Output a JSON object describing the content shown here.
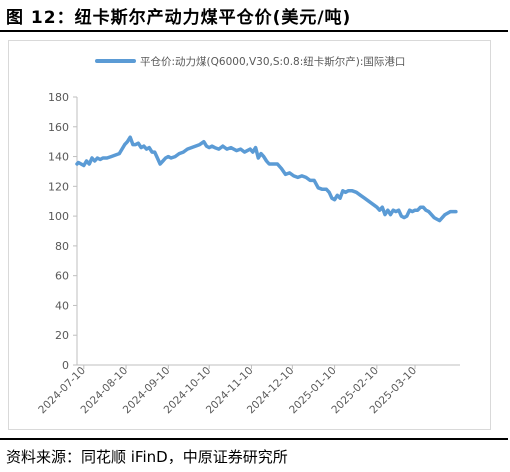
{
  "figure": {
    "title": "图 12：纽卡斯尔产动力煤平仓价(美元/吨)",
    "source": "资料来源：同花顺 iFinD，中原证券研究所"
  },
  "chart_data": {
    "type": "line",
    "title": "",
    "xlabel": "",
    "ylabel": "",
    "ylim": [
      0,
      180
    ],
    "yticks": [
      0,
      20,
      40,
      60,
      80,
      100,
      120,
      140,
      160,
      180
    ],
    "xlim": [
      "2024-07-05",
      "2025-04-12"
    ],
    "xticks": [
      "2024-07-10",
      "2024-08-10",
      "2024-09-10",
      "2024-10-10",
      "2024-11-10",
      "2024-12-10",
      "2025-01-10",
      "2025-02-10",
      "2025-03-10"
    ],
    "grid": false,
    "legend": "top",
    "series": [
      {
        "name": "平仓价:动力煤(Q6000,V30,S:0.8:纽卡斯尔产):国际港口",
        "color": "#5b9bd5",
        "x": [
          "2024-07-05",
          "2024-07-06",
          "2024-07-08",
          "2024-07-10",
          "2024-07-12",
          "2024-07-14",
          "2024-07-16",
          "2024-07-18",
          "2024-07-20",
          "2024-07-22",
          "2024-07-24",
          "2024-07-27",
          "2024-07-30",
          "2024-08-02",
          "2024-08-05",
          "2024-08-07",
          "2024-08-09",
          "2024-08-11",
          "2024-08-13",
          "2024-08-15",
          "2024-08-17",
          "2024-08-19",
          "2024-08-21",
          "2024-08-23",
          "2024-08-25",
          "2024-08-27",
          "2024-08-29",
          "2024-08-31",
          "2024-09-02",
          "2024-09-04",
          "2024-09-06",
          "2024-09-08",
          "2024-09-10",
          "2024-09-12",
          "2024-09-15",
          "2024-09-18",
          "2024-09-21",
          "2024-09-24",
          "2024-09-27",
          "2024-09-30",
          "2024-10-03",
          "2024-10-06",
          "2024-10-08",
          "2024-10-10",
          "2024-10-12",
          "2024-10-14",
          "2024-10-17",
          "2024-10-20",
          "2024-10-23",
          "2024-10-26",
          "2024-10-28",
          "2024-10-30",
          "2024-11-02",
          "2024-11-05",
          "2024-11-07",
          "2024-11-09",
          "2024-11-11",
          "2024-11-13",
          "2024-11-15",
          "2024-11-17",
          "2024-11-19",
          "2024-11-21",
          "2024-11-23",
          "2024-11-26",
          "2024-11-29",
          "2024-12-02",
          "2024-12-05",
          "2024-12-08",
          "2024-12-11",
          "2024-12-14",
          "2024-12-17",
          "2024-12-20",
          "2024-12-23",
          "2024-12-26",
          "2024-12-29",
          "2025-01-01",
          "2025-01-04",
          "2025-01-06",
          "2025-01-08",
          "2025-01-10",
          "2025-01-12",
          "2025-01-14",
          "2025-01-16",
          "2025-01-18",
          "2025-01-20",
          "2025-01-23",
          "2025-01-26",
          "2025-01-29",
          "2025-02-01",
          "2025-02-04",
          "2025-02-07",
          "2025-02-10",
          "2025-02-12",
          "2025-02-14",
          "2025-02-16",
          "2025-02-18",
          "2025-02-20",
          "2025-02-22",
          "2025-02-24",
          "2025-02-26",
          "2025-02-28",
          "2025-03-02",
          "2025-03-04",
          "2025-03-06",
          "2025-03-08",
          "2025-03-10",
          "2025-03-12",
          "2025-03-14",
          "2025-03-16",
          "2025-03-18",
          "2025-03-20",
          "2025-03-22",
          "2025-03-24",
          "2025-03-26",
          "2025-03-28",
          "2025-03-30",
          "2025-04-01",
          "2025-04-03",
          "2025-04-05",
          "2025-04-07",
          "2025-04-09"
        ],
        "values": [
          135,
          136,
          135,
          134,
          137,
          135,
          139,
          137,
          139,
          138,
          139,
          139,
          140,
          141,
          142,
          145,
          148,
          150,
          153,
          148,
          148,
          149,
          146,
          147,
          145,
          146,
          143,
          143,
          139,
          135,
          137,
          139,
          140,
          139,
          140,
          142,
          143,
          145,
          146,
          147,
          148,
          150,
          147,
          146,
          147,
          146,
          145,
          147,
          145,
          146,
          145,
          144,
          145,
          143,
          144,
          145,
          143,
          146,
          139,
          142,
          140,
          137,
          135,
          135,
          135,
          132,
          128,
          129,
          127,
          126,
          127,
          126,
          124,
          124,
          119,
          118,
          118,
          116,
          112,
          111,
          114,
          112,
          117,
          116,
          117,
          117,
          116,
          114,
          112,
          110,
          108,
          106,
          104,
          106,
          101,
          104,
          101,
          104,
          103,
          104,
          100,
          99,
          100,
          104,
          103,
          104,
          104,
          106,
          106,
          104,
          103,
          101,
          99,
          98,
          97,
          99,
          101,
          102,
          103,
          103,
          103
        ]
      }
    ]
  }
}
